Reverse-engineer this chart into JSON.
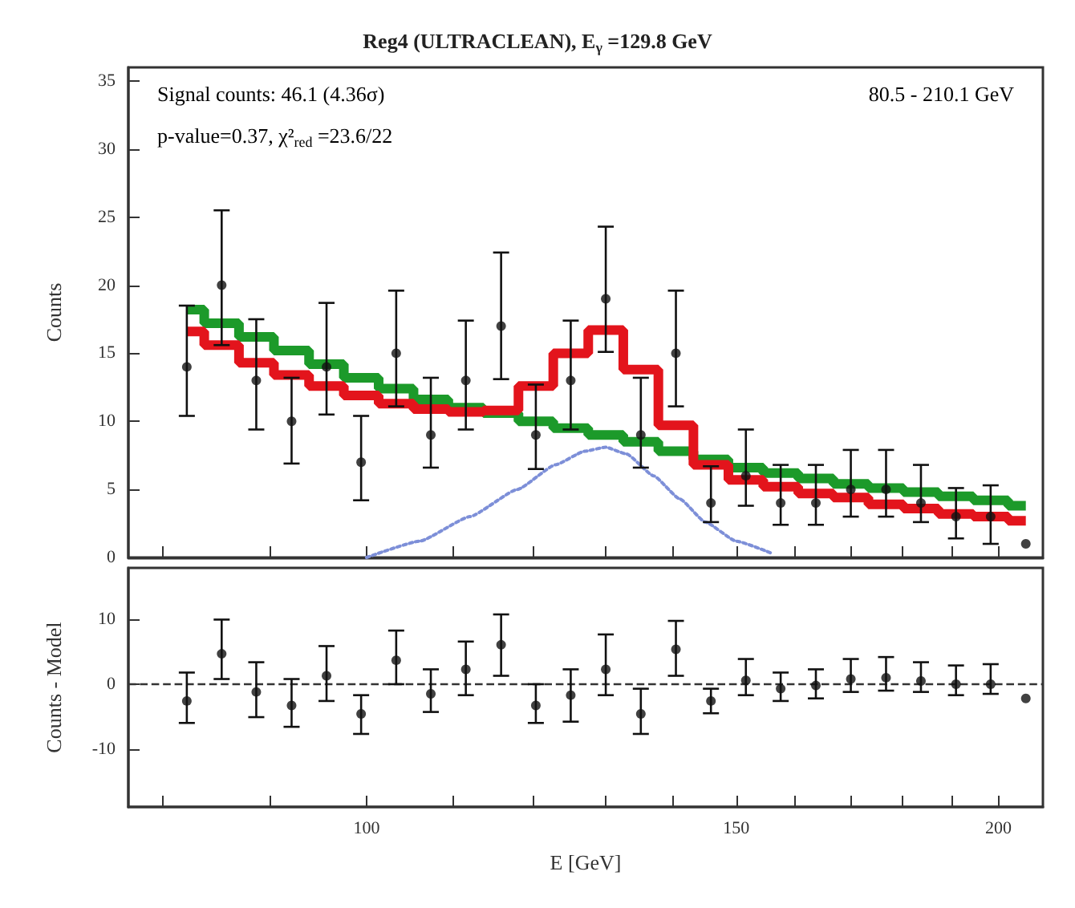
{
  "chart_data": [
    {
      "type": "scatter",
      "title": "Reg4 (ULTRACLEAN), E$_{γ}$ =129.8 GeV",
      "ylabel": "Counts",
      "annotations": [
        "Signal counts: 46.1 (4.36σ)",
        "p-value=0.37, χ²$_{red}$ =23.6/22",
        "80.5 - 210.1 GeV"
      ],
      "log": "x",
      "tick_labels": "y",
      "xlim": [
        77,
        210
      ],
      "xticks": [
        {
          "value": 80,
          "label": null
        },
        {
          "value": 90,
          "label": null
        },
        {
          "value": 100,
          "label": null
        },
        {
          "value": 110,
          "label": null
        },
        {
          "value": 120,
          "label": null
        },
        {
          "value": 130,
          "label": null
        },
        {
          "value": 140,
          "label": null
        },
        {
          "value": 150,
          "label": null
        },
        {
          "value": 160,
          "label": null
        },
        {
          "value": 170,
          "label": null
        },
        {
          "value": 180,
          "label": null
        },
        {
          "value": 190,
          "label": null
        },
        {
          "value": 200,
          "label": null
        }
      ],
      "ylim": [
        0,
        36
      ],
      "yticks": [
        0,
        5,
        10,
        15,
        20,
        25,
        30,
        35
      ],
      "x": [
        82.1,
        85.3,
        88.6,
        92.1,
        95.7,
        99.4,
        103.3,
        107.3,
        111.5,
        115.9,
        120.4,
        125.1,
        130.0,
        135.1,
        140.4,
        145.9,
        151.6,
        157.5,
        163.7,
        170.1,
        176.8,
        183.7,
        190.9,
        198.3,
        206.1
      ],
      "series": [
        {
          "type": "step",
          "color": "#1c9a2a",
          "values": [
            18.2,
            17.2,
            16.2,
            15.2,
            14.2,
            13.2,
            12.4,
            11.6,
            11.0,
            10.6,
            10.0,
            9.5,
            9.0,
            8.5,
            7.8,
            7.2,
            6.6,
            6.2,
            5.8,
            5.4,
            5.1,
            4.8,
            4.5,
            4.2,
            3.8
          ]
        },
        {
          "type": "step",
          "color": "#e3141c",
          "values": [
            16.6,
            15.6,
            14.3,
            13.4,
            12.6,
            11.9,
            11.3,
            10.9,
            10.7,
            10.8,
            12.6,
            15.0,
            16.7,
            13.8,
            9.7,
            6.8,
            5.7,
            5.2,
            4.7,
            4.4,
            3.9,
            3.6,
            3.2,
            3.0,
            2.7
          ]
        },
        {
          "type": "line",
          "color": "#7d8fd8",
          "line_style": "dotted",
          "marker": "none",
          "x": [
            100,
            106,
            112,
            118,
            123,
            127,
            130,
            133,
            137,
            141,
            145,
            150,
            156
          ],
          "values": [
            0,
            1.2,
            3,
            5,
            6.8,
            7.8,
            8.1,
            7.6,
            6,
            4.3,
            2.6,
            1.2,
            0.3
          ]
        },
        {
          "color": "#111111",
          "marker": "circle",
          "values": [
            14,
            20,
            13,
            10,
            14,
            7,
            15,
            9,
            13,
            17,
            9,
            13,
            19,
            9,
            15,
            4,
            6,
            4,
            4,
            5,
            5,
            4,
            3,
            3,
            1
          ],
          "errors": [
            [
              10.4,
              18.5
            ],
            [
              15.6,
              25.5
            ],
            [
              9.4,
              17.5
            ],
            [
              6.9,
              13.2
            ],
            [
              10.5,
              18.7
            ],
            [
              4.2,
              10.4
            ],
            [
              11.1,
              19.6
            ],
            [
              6.6,
              13.2
            ],
            [
              9.4,
              17.4
            ],
            [
              13.1,
              22.4
            ],
            [
              6.5,
              12.7
            ],
            [
              9.4,
              17.4
            ],
            [
              15.1,
              24.3
            ],
            [
              6.6,
              13.2
            ],
            [
              11.1,
              19.6
            ],
            [
              2.6,
              6.7
            ],
            [
              3.8,
              9.4
            ],
            [
              2.4,
              6.8
            ],
            [
              2.4,
              6.8
            ],
            [
              3.0,
              7.9
            ],
            [
              3.0,
              7.9
            ],
            [
              2.6,
              6.8
            ],
            [
              1.4,
              5.1
            ],
            [
              1.0,
              5.3
            ],
            null
          ]
        }
      ]
    },
    {
      "type": "scatter",
      "xlabel": "E [GeV]",
      "ylabel": "Counts - Model",
      "log": "x",
      "xlim": [
        77,
        210
      ],
      "xticks": [
        {
          "value": 80,
          "label": null
        },
        {
          "value": 90,
          "label": null
        },
        100,
        {
          "value": 110,
          "label": null
        },
        {
          "value": 120,
          "label": null
        },
        {
          "value": 130,
          "label": null
        },
        {
          "value": 140,
          "label": null
        },
        150,
        {
          "value": 160,
          "label": null
        },
        {
          "value": 170,
          "label": null
        },
        {
          "value": 180,
          "label": null
        },
        {
          "value": 190,
          "label": null
        },
        200
      ],
      "ylim": [
        -19,
        18
      ],
      "yticks": [
        -10,
        0,
        10
      ],
      "ref_lines": [
        {
          "axis": "y",
          "value": 0,
          "line_style": "dashed",
          "color": "#333333"
        }
      ],
      "x": [
        82.1,
        85.3,
        88.6,
        92.1,
        95.7,
        99.4,
        103.3,
        107.3,
        111.5,
        115.9,
        120.4,
        125.1,
        130.0,
        135.1,
        140.4,
        145.9,
        151.6,
        157.5,
        163.7,
        170.1,
        176.8,
        183.7,
        190.9,
        198.3,
        206.1
      ],
      "series": [
        {
          "color": "#111111",
          "marker": "circle",
          "values": [
            -2.6,
            4.7,
            -1.2,
            -3.3,
            1.3,
            -4.6,
            3.7,
            -1.5,
            2.3,
            6.1,
            -3.3,
            -1.7,
            2.3,
            -4.6,
            5.4,
            -2.6,
            0.6,
            -0.7,
            -0.2,
            0.8,
            1.0,
            0.5,
            0,
            0,
            -2.2
          ],
          "errors": [
            [
              -6,
              1.8
            ],
            [
              0.8,
              10
            ],
            [
              -5.1,
              3.4
            ],
            [
              -6.6,
              0.8
            ],
            [
              -2.6,
              5.9
            ],
            [
              -7.7,
              -1.7
            ],
            [
              0,
              8.3
            ],
            [
              -4.3,
              2.3
            ],
            [
              -1.7,
              6.6
            ],
            [
              1.3,
              10.8
            ],
            [
              -6,
              0
            ],
            [
              -5.8,
              2.3
            ],
            [
              -1.7,
              7.7
            ],
            [
              -7.7,
              -0.7
            ],
            [
              1.3,
              9.8
            ],
            [
              -4.5,
              -0.7
            ],
            [
              -1.7,
              3.9
            ],
            [
              -2.6,
              1.8
            ],
            [
              -2.2,
              2.3
            ],
            [
              -1.2,
              3.9
            ],
            [
              -1.0,
              4.2
            ],
            [
              -1.2,
              3.4
            ],
            [
              -1.7,
              2.9
            ],
            [
              -1.5,
              3.1
            ],
            null
          ]
        }
      ]
    }
  ]
}
